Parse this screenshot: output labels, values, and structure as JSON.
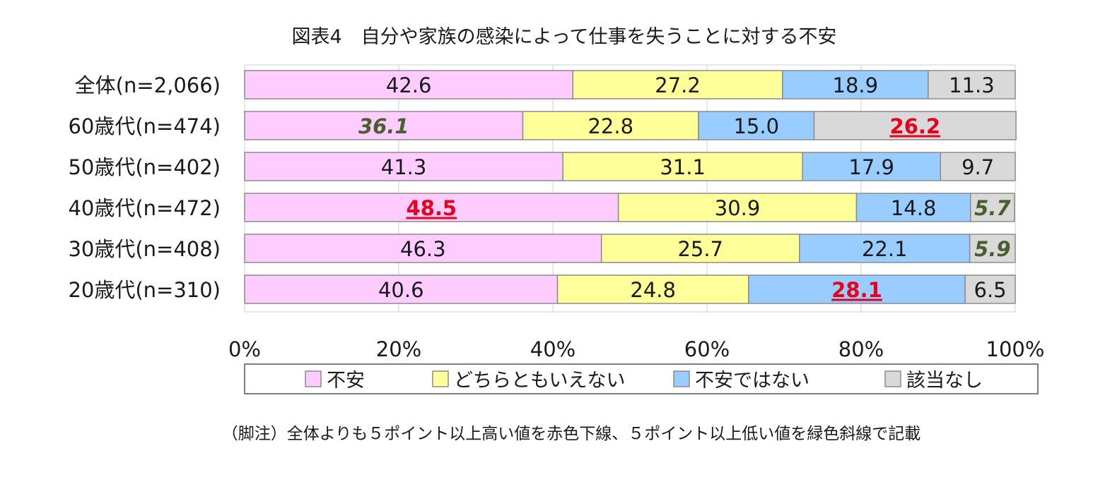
{
  "title": "図表4　自分や家族の感染によって仕事を失うことに対する不安",
  "footnote": "（脚注）全体よりも５ポイント以上高い値を赤色下線、５ポイント以上低い値を緑色斜線で記載",
  "colors": {
    "不安": "#ffccff",
    "どちらともいえない": "#ffff99",
    "不安ではない": "#99ccff",
    "該当なし": "#d9d9d9",
    "high_highlight": "#e8001c",
    "low_highlight": "#4a5f2e"
  },
  "chart_data": {
    "type": "bar",
    "orientation": "horizontal",
    "stacked": true,
    "percent": true,
    "categories": [
      "全体(n=2,066)",
      "60歳代(n=474)",
      "50歳代(n=402)",
      "40歳代(n=472)",
      "30歳代(n=408)",
      "20歳代(n=310)"
    ],
    "series": [
      {
        "name": "不安",
        "values": [
          42.6,
          36.1,
          41.3,
          48.5,
          46.3,
          40.6
        ],
        "labels": [
          "42.6",
          "36.1",
          "41.3",
          "48.5",
          "46.3",
          "40.6"
        ]
      },
      {
        "name": "どちらともいえない",
        "values": [
          27.2,
          22.8,
          31.1,
          30.9,
          25.7,
          24.8
        ],
        "labels": [
          "27.2",
          "22.8",
          "31.1",
          "30.9",
          "25.7",
          "24.8"
        ]
      },
      {
        "name": "不安ではない",
        "values": [
          18.9,
          15.0,
          17.9,
          14.8,
          22.1,
          28.1
        ],
        "labels": [
          "18.9",
          "15.0",
          "17.9",
          "14.8",
          "22.1",
          "28.1"
        ]
      },
      {
        "name": "該当なし",
        "values": [
          11.3,
          26.2,
          9.7,
          5.7,
          5.9,
          6.5
        ],
        "labels": [
          "11.3",
          "26.2",
          "9.7",
          "5.7",
          "5.9",
          "6.5"
        ]
      }
    ],
    "highlights": [
      {
        "category": 1,
        "series": 0,
        "style": "low"
      },
      {
        "category": 1,
        "series": 3,
        "style": "high"
      },
      {
        "category": 3,
        "series": 0,
        "style": "high"
      },
      {
        "category": 3,
        "series": 3,
        "style": "low"
      },
      {
        "category": 4,
        "series": 3,
        "style": "low"
      },
      {
        "category": 5,
        "series": 2,
        "style": "high"
      }
    ],
    "xticks": [
      "0%",
      "20%",
      "40%",
      "60%",
      "80%",
      "100%"
    ],
    "xlim": [
      0,
      100
    ],
    "grid": true,
    "legend_position": "bottom"
  }
}
